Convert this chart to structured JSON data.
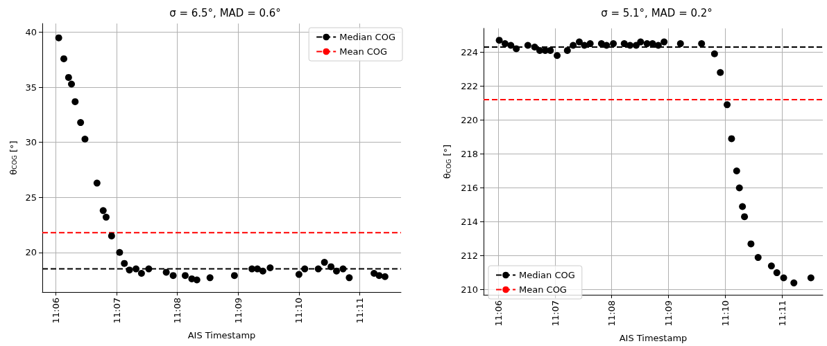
{
  "chart_data": [
    {
      "type": "scatter",
      "title": "σ = 6.5°, MAD = 0.6°",
      "xlabel": "AIS Timestamp",
      "ylabel": "θ$_{COG}$ [°]",
      "xlim": [
        11.0963,
        11.1947
      ],
      "xticks": [
        {
          "value": 11.1,
          "label": "11:06"
        },
        {
          "value": 11.1167,
          "label": "11:07"
        },
        {
          "value": 11.1333,
          "label": "11:08"
        },
        {
          "value": 11.15,
          "label": "11:09"
        },
        {
          "value": 11.1667,
          "label": "11:10"
        },
        {
          "value": 11.1833,
          "label": "11:11"
        }
      ],
      "ylim": [
        16.4,
        40.8
      ],
      "yticks": [
        20,
        25,
        30,
        35,
        40
      ],
      "grid": true,
      "legend": "top right",
      "marker": "circle",
      "ref_lines": [
        {
          "axis": "y",
          "value": 18.5,
          "label": "Median COG",
          "color": "#000000",
          "line_style": "dashed"
        },
        {
          "axis": "y",
          "value": 21.8,
          "label": "Mean COG",
          "color": "#ff0000",
          "line_style": "dashed"
        }
      ],
      "series": [
        {
          "color": "#000000",
          "x": [
            11.1008,
            11.1022,
            11.1035,
            11.1043,
            11.1053,
            11.1068,
            11.108,
            11.1113,
            11.113,
            11.1138,
            11.1153,
            11.1175,
            11.1188,
            11.1202,
            11.122,
            11.1235,
            11.1255,
            11.1303,
            11.1322,
            11.1355,
            11.1373,
            11.1387,
            11.1423,
            11.149,
            11.1538,
            11.1553,
            11.1568,
            11.1588,
            11.1667,
            11.1683,
            11.172,
            11.1737,
            11.1755,
            11.177,
            11.1788,
            11.1805,
            11.1873,
            11.1887,
            11.1903
          ],
          "values": [
            39.5,
            37.6,
            35.9,
            35.3,
            33.7,
            31.8,
            30.3,
            26.3,
            23.8,
            23.2,
            21.5,
            20.0,
            19.0,
            18.4,
            18.5,
            18.1,
            18.5,
            18.2,
            17.9,
            17.9,
            17.6,
            17.5,
            17.7,
            17.9,
            18.5,
            18.5,
            18.3,
            18.6,
            18.0,
            18.5,
            18.5,
            19.1,
            18.7,
            18.3,
            18.5,
            17.7,
            18.1,
            17.9,
            17.8
          ]
        }
      ]
    },
    {
      "type": "scatter",
      "title": "σ = 5.1°, MAD = 0.2°",
      "xlabel": "AIS Timestamp",
      "ylabel": "θ$_{COG}$ [°]",
      "xlim": [
        11.0957,
        11.1953
      ],
      "xticks": [
        {
          "value": 11.1,
          "label": "11:06"
        },
        {
          "value": 11.1167,
          "label": "11:07"
        },
        {
          "value": 11.1333,
          "label": "11:08"
        },
        {
          "value": 11.15,
          "label": "11:09"
        },
        {
          "value": 11.1667,
          "label": "11:10"
        },
        {
          "value": 11.1833,
          "label": "11:11"
        }
      ],
      "ylim": [
        209.7,
        225.4
      ],
      "yticks": [
        210,
        212,
        214,
        216,
        218,
        220,
        222,
        224
      ],
      "grid": true,
      "legend": "bottom left",
      "marker": "circle",
      "ref_lines": [
        {
          "axis": "y",
          "value": 224.3,
          "label": "Median COG",
          "color": "#000000",
          "line_style": "dashed"
        },
        {
          "axis": "y",
          "value": 221.2,
          "label": "Mean COG",
          "color": "#ff0000",
          "line_style": "dashed"
        }
      ],
      "series": [
        {
          "color": "#000000",
          "x": [
            11.1003,
            11.102,
            11.1037,
            11.1053,
            11.1087,
            11.1107,
            11.1122,
            11.1138,
            11.1153,
            11.1173,
            11.1203,
            11.122,
            11.1238,
            11.1253,
            11.127,
            11.1303,
            11.1318,
            11.1338,
            11.137,
            11.1387,
            11.1405,
            11.1418,
            11.1437,
            11.1453,
            11.147,
            11.1487,
            11.1535,
            11.1597,
            11.1635,
            11.1652,
            11.1672,
            11.1685,
            11.17,
            11.1708,
            11.1717,
            11.1723,
            11.1742,
            11.1763,
            11.1802,
            11.1818,
            11.1838,
            11.1868,
            11.1918
          ],
          "values": [
            224.7,
            224.5,
            224.4,
            224.2,
            224.4,
            224.3,
            224.1,
            224.1,
            224.1,
            223.8,
            224.1,
            224.4,
            224.6,
            224.4,
            224.5,
            224.5,
            224.4,
            224.5,
            224.5,
            224.4,
            224.4,
            224.6,
            224.5,
            224.5,
            224.4,
            224.6,
            224.5,
            224.5,
            223.9,
            222.8,
            220.9,
            218.9,
            217.0,
            216.0,
            214.9,
            214.3,
            212.7,
            211.9,
            211.4,
            211.0,
            210.7,
            210.4,
            210.7
          ]
        }
      ]
    }
  ]
}
